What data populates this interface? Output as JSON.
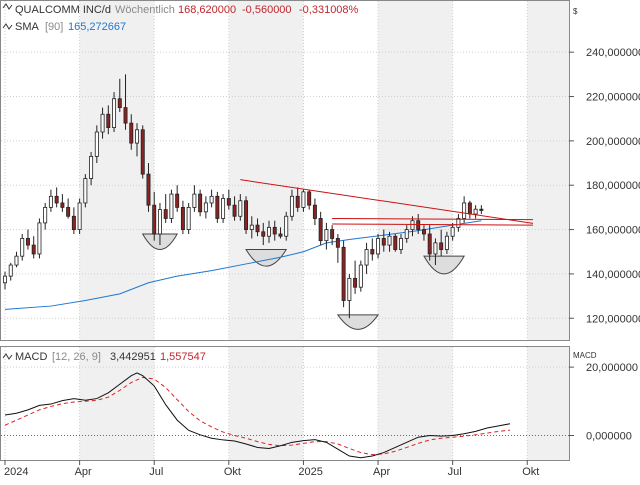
{
  "header": {
    "symbol": "QUALCOMM INC/d",
    "interval": "Wöchentlich",
    "last": "168,620000",
    "change": "-0,560000",
    "change_pct": "-0,331008%",
    "currency": "$"
  },
  "sma_legend": {
    "label": "SMA",
    "param": "[90]",
    "value": "165,272667"
  },
  "macd_legend": {
    "label": "MACD",
    "params": "[12, 26, 9]",
    "macd_value": "3,442951",
    "signal_value": "1,557547"
  },
  "macd_axis_label": "MACD",
  "colors": {
    "up_candle": "#ffffff",
    "down_candle": "#8b2323",
    "candle_outline": "#222222",
    "sma": "#1f77d0",
    "trendline": "#cc1111",
    "macd_line": "#111111",
    "signal_line": "#dd2222",
    "zero_line": "#3b6fd0",
    "band_shade": "#f0f0f0",
    "grid": "#cfcfcf",
    "pattern_fill": "#dddddd"
  },
  "chart_data": [
    {
      "type": "candlestick",
      "title": "QUALCOMM INC/d",
      "x_labels": [
        "2024",
        "Apr",
        "Jul",
        "Okt",
        "2025",
        "Apr",
        "Jul",
        "Okt"
      ],
      "y_ticks": [
        "120,000000",
        "140,000000",
        "160,000000",
        "180,000000",
        "200,000000",
        "220,000000",
        "240,000000"
      ],
      "y_tick_values": [
        120,
        140,
        160,
        180,
        200,
        220,
        240
      ],
      "ylim": [
        112,
        250
      ],
      "x_range": [
        0,
        92
      ],
      "label_positions": [
        0,
        13,
        26,
        39,
        52,
        65,
        78,
        91
      ],
      "candles": [
        {
          "o": 136,
          "h": 141,
          "l": 133,
          "c": 139
        },
        {
          "o": 139,
          "h": 145,
          "l": 137,
          "c": 144
        },
        {
          "o": 144,
          "h": 150,
          "l": 143,
          "c": 148
        },
        {
          "o": 148,
          "h": 158,
          "l": 146,
          "c": 156
        },
        {
          "o": 156,
          "h": 160,
          "l": 151,
          "c": 153
        },
        {
          "o": 153,
          "h": 157,
          "l": 147,
          "c": 149
        },
        {
          "o": 149,
          "h": 165,
          "l": 147,
          "c": 163
        },
        {
          "o": 163,
          "h": 172,
          "l": 160,
          "c": 170
        },
        {
          "o": 170,
          "h": 178,
          "l": 168,
          "c": 175
        },
        {
          "o": 175,
          "h": 179,
          "l": 170,
          "c": 172
        },
        {
          "o": 172,
          "h": 176,
          "l": 168,
          "c": 170
        },
        {
          "o": 170,
          "h": 174,
          "l": 165,
          "c": 166
        },
        {
          "o": 166,
          "h": 170,
          "l": 158,
          "c": 160
        },
        {
          "o": 160,
          "h": 174,
          "l": 158,
          "c": 172
        },
        {
          "o": 172,
          "h": 185,
          "l": 170,
          "c": 183
        },
        {
          "o": 183,
          "h": 195,
          "l": 180,
          "c": 193
        },
        {
          "o": 193,
          "h": 207,
          "l": 190,
          "c": 204
        },
        {
          "o": 204,
          "h": 215,
          "l": 201,
          "c": 212
        },
        {
          "o": 212,
          "h": 216,
          "l": 203,
          "c": 206
        },
        {
          "o": 206,
          "h": 222,
          "l": 204,
          "c": 219
        },
        {
          "o": 219,
          "h": 228,
          "l": 213,
          "c": 215
        },
        {
          "o": 215,
          "h": 230,
          "l": 205,
          "c": 208
        },
        {
          "o": 208,
          "h": 212,
          "l": 196,
          "c": 199
        },
        {
          "o": 199,
          "h": 208,
          "l": 193,
          "c": 205
        },
        {
          "o": 205,
          "h": 207,
          "l": 183,
          "c": 185
        },
        {
          "o": 185,
          "h": 190,
          "l": 168,
          "c": 171
        },
        {
          "o": 171,
          "h": 177,
          "l": 155,
          "c": 158
        },
        {
          "o": 158,
          "h": 172,
          "l": 153,
          "c": 169
        },
        {
          "o": 169,
          "h": 176,
          "l": 163,
          "c": 165
        },
        {
          "o": 165,
          "h": 178,
          "l": 163,
          "c": 176
        },
        {
          "o": 176,
          "h": 180,
          "l": 168,
          "c": 170
        },
        {
          "o": 170,
          "h": 173,
          "l": 158,
          "c": 160
        },
        {
          "o": 160,
          "h": 172,
          "l": 158,
          "c": 170
        },
        {
          "o": 170,
          "h": 180,
          "l": 168,
          "c": 176
        },
        {
          "o": 176,
          "h": 178,
          "l": 166,
          "c": 168
        },
        {
          "o": 168,
          "h": 175,
          "l": 165,
          "c": 172
        },
        {
          "o": 172,
          "h": 178,
          "l": 170,
          "c": 175
        },
        {
          "o": 175,
          "h": 177,
          "l": 163,
          "c": 165
        },
        {
          "o": 165,
          "h": 176,
          "l": 163,
          "c": 174
        },
        {
          "o": 174,
          "h": 178,
          "l": 169,
          "c": 171
        },
        {
          "o": 171,
          "h": 175,
          "l": 164,
          "c": 166
        },
        {
          "o": 166,
          "h": 176,
          "l": 164,
          "c": 173
        },
        {
          "o": 173,
          "h": 175,
          "l": 158,
          "c": 160
        },
        {
          "o": 160,
          "h": 166,
          "l": 156,
          "c": 162
        },
        {
          "o": 162,
          "h": 165,
          "l": 157,
          "c": 159
        },
        {
          "o": 159,
          "h": 163,
          "l": 153,
          "c": 157
        },
        {
          "o": 157,
          "h": 164,
          "l": 154,
          "c": 161
        },
        {
          "o": 161,
          "h": 164,
          "l": 155,
          "c": 158
        },
        {
          "o": 158,
          "h": 161,
          "l": 156,
          "c": 157
        },
        {
          "o": 157,
          "h": 168,
          "l": 155,
          "c": 166
        },
        {
          "o": 166,
          "h": 178,
          "l": 164,
          "c": 175
        },
        {
          "o": 175,
          "h": 179,
          "l": 168,
          "c": 170
        },
        {
          "o": 170,
          "h": 178,
          "l": 168,
          "c": 177
        },
        {
          "o": 177,
          "h": 178,
          "l": 169,
          "c": 171
        },
        {
          "o": 171,
          "h": 174,
          "l": 162,
          "c": 165
        },
        {
          "o": 165,
          "h": 168,
          "l": 153,
          "c": 155
        },
        {
          "o": 155,
          "h": 163,
          "l": 151,
          "c": 160
        },
        {
          "o": 160,
          "h": 162,
          "l": 153,
          "c": 156
        },
        {
          "o": 156,
          "h": 158,
          "l": 145,
          "c": 152
        },
        {
          "o": 152,
          "h": 155,
          "l": 125,
          "c": 128
        },
        {
          "o": 128,
          "h": 140,
          "l": 120,
          "c": 138
        },
        {
          "o": 138,
          "h": 146,
          "l": 131,
          "c": 134
        },
        {
          "o": 134,
          "h": 146,
          "l": 132,
          "c": 144
        },
        {
          "o": 144,
          "h": 154,
          "l": 140,
          "c": 151
        },
        {
          "o": 151,
          "h": 156,
          "l": 146,
          "c": 149
        },
        {
          "o": 149,
          "h": 158,
          "l": 147,
          "c": 156
        },
        {
          "o": 156,
          "h": 160,
          "l": 150,
          "c": 153
        },
        {
          "o": 153,
          "h": 159,
          "l": 150,
          "c": 157
        },
        {
          "o": 157,
          "h": 158,
          "l": 150,
          "c": 151
        },
        {
          "o": 151,
          "h": 158,
          "l": 149,
          "c": 156
        },
        {
          "o": 156,
          "h": 162,
          "l": 154,
          "c": 160
        },
        {
          "o": 160,
          "h": 166,
          "l": 157,
          "c": 164
        },
        {
          "o": 164,
          "h": 167,
          "l": 158,
          "c": 160
        },
        {
          "o": 160,
          "h": 162,
          "l": 155,
          "c": 158
        },
        {
          "o": 158,
          "h": 162,
          "l": 146,
          "c": 149
        },
        {
          "o": 149,
          "h": 156,
          "l": 144,
          "c": 154
        },
        {
          "o": 154,
          "h": 160,
          "l": 148,
          "c": 151
        },
        {
          "o": 151,
          "h": 159,
          "l": 149,
          "c": 157
        },
        {
          "o": 157,
          "h": 163,
          "l": 155,
          "c": 161
        },
        {
          "o": 161,
          "h": 167,
          "l": 159,
          "c": 165
        },
        {
          "o": 165,
          "h": 175,
          "l": 163,
          "c": 172
        },
        {
          "o": 172,
          "h": 173,
          "l": 165,
          "c": 167
        },
        {
          "o": 167,
          "h": 171,
          "l": 165,
          "c": 169.18
        },
        {
          "o": 169.18,
          "h": 171,
          "l": 167,
          "c": 168.62
        }
      ],
      "sma": [
        {
          "x": 0,
          "y": 124
        },
        {
          "x": 8,
          "y": 125.5
        },
        {
          "x": 14,
          "y": 128
        },
        {
          "x": 20,
          "y": 131
        },
        {
          "x": 25,
          "y": 136
        },
        {
          "x": 30,
          "y": 139
        },
        {
          "x": 36,
          "y": 141.5
        },
        {
          "x": 42,
          "y": 144.5
        },
        {
          "x": 48,
          "y": 147.5
        },
        {
          "x": 52,
          "y": 150
        },
        {
          "x": 56,
          "y": 154
        },
        {
          "x": 60,
          "y": 155.5
        },
        {
          "x": 66,
          "y": 157.5
        },
        {
          "x": 72,
          "y": 159.5
        },
        {
          "x": 78,
          "y": 162
        },
        {
          "x": 83,
          "y": 164
        }
      ],
      "trendlines": [
        {
          "x1": 41,
          "y1": 182.5,
          "x2": 92,
          "y2": 162.8
        },
        {
          "x1": 57,
          "y1": 165,
          "x2": 92,
          "y2": 164.5
        },
        {
          "x1": 57,
          "y1": 162.5,
          "x2": 92,
          "y2": 162
        }
      ],
      "patterns": [
        {
          "x1": 24,
          "x2": 30,
          "y_top": 158,
          "y_bot": 151
        },
        {
          "x1": 42,
          "x2": 49,
          "y_top": 151,
          "y_bot": 143.5
        },
        {
          "x1": 58,
          "x2": 65,
          "y_top": 121.5,
          "y_bot": 115
        },
        {
          "x1": 73,
          "x2": 80,
          "y_top": 148,
          "y_bot": 140
        }
      ]
    },
    {
      "type": "line",
      "title": "MACD",
      "y_ticks": [
        "0,000000",
        "20,000000"
      ],
      "y_tick_values": [
        0,
        20
      ],
      "ylim": [
        -6,
        21.5
      ],
      "x_range": [
        0,
        92
      ],
      "series": [
        {
          "name": "MACD",
          "values": [
            {
              "x": 0,
              "y": 6
            },
            {
              "x": 2,
              "y": 6.5
            },
            {
              "x": 4,
              "y": 7.5
            },
            {
              "x": 6,
              "y": 8.8
            },
            {
              "x": 8,
              "y": 9.2
            },
            {
              "x": 10,
              "y": 10.2
            },
            {
              "x": 12,
              "y": 10.8
            },
            {
              "x": 14,
              "y": 10.3
            },
            {
              "x": 16,
              "y": 10.8
            },
            {
              "x": 18,
              "y": 12.5
            },
            {
              "x": 20,
              "y": 15
            },
            {
              "x": 22,
              "y": 17.5
            },
            {
              "x": 23,
              "y": 18.3
            },
            {
              "x": 24,
              "y": 17.5
            },
            {
              "x": 26,
              "y": 14.5
            },
            {
              "x": 28,
              "y": 9
            },
            {
              "x": 30,
              "y": 4.5
            },
            {
              "x": 32,
              "y": 1.5
            },
            {
              "x": 34,
              "y": 0.2
            },
            {
              "x": 36,
              "y": -0.8
            },
            {
              "x": 38,
              "y": -1.3
            },
            {
              "x": 40,
              "y": -1.6
            },
            {
              "x": 42,
              "y": -2.5
            },
            {
              "x": 44,
              "y": -3.5
            },
            {
              "x": 46,
              "y": -3.8
            },
            {
              "x": 48,
              "y": -3
            },
            {
              "x": 50,
              "y": -2
            },
            {
              "x": 52,
              "y": -1.5
            },
            {
              "x": 54,
              "y": -1.2
            },
            {
              "x": 56,
              "y": -2
            },
            {
              "x": 58,
              "y": -4
            },
            {
              "x": 60,
              "y": -6
            },
            {
              "x": 62,
              "y": -6.5
            },
            {
              "x": 64,
              "y": -6
            },
            {
              "x": 66,
              "y": -5
            },
            {
              "x": 68,
              "y": -3.5
            },
            {
              "x": 70,
              "y": -2
            },
            {
              "x": 72,
              "y": -0.5
            },
            {
              "x": 74,
              "y": 0
            },
            {
              "x": 76,
              "y": -0.2
            },
            {
              "x": 78,
              "y": 0
            },
            {
              "x": 80,
              "y": 0.5
            },
            {
              "x": 82,
              "y": 1.2
            },
            {
              "x": 84,
              "y": 2.2
            },
            {
              "x": 86,
              "y": 2.8
            },
            {
              "x": 88,
              "y": 3.44
            }
          ]
        },
        {
          "name": "Signal",
          "values": [
            {
              "x": 0,
              "y": 3
            },
            {
              "x": 2,
              "y": 4.5
            },
            {
              "x": 4,
              "y": 6
            },
            {
              "x": 6,
              "y": 7.5
            },
            {
              "x": 8,
              "y": 8.5
            },
            {
              "x": 10,
              "y": 9.3
            },
            {
              "x": 12,
              "y": 9.8
            },
            {
              "x": 14,
              "y": 10
            },
            {
              "x": 16,
              "y": 10.3
            },
            {
              "x": 18,
              "y": 11.2
            },
            {
              "x": 20,
              "y": 13.2
            },
            {
              "x": 22,
              "y": 15.5
            },
            {
              "x": 24,
              "y": 17
            },
            {
              "x": 26,
              "y": 16.5
            },
            {
              "x": 28,
              "y": 14
            },
            {
              "x": 30,
              "y": 10.5
            },
            {
              "x": 32,
              "y": 7
            },
            {
              "x": 34,
              "y": 4.3
            },
            {
              "x": 36,
              "y": 2.5
            },
            {
              "x": 38,
              "y": 1
            },
            {
              "x": 40,
              "y": 0
            },
            {
              "x": 42,
              "y": -0.8
            },
            {
              "x": 44,
              "y": -1.8
            },
            {
              "x": 46,
              "y": -2.6
            },
            {
              "x": 48,
              "y": -3
            },
            {
              "x": 50,
              "y": -2.8
            },
            {
              "x": 52,
              "y": -2.3
            },
            {
              "x": 54,
              "y": -1.8
            },
            {
              "x": 56,
              "y": -1.8
            },
            {
              "x": 58,
              "y": -2.5
            },
            {
              "x": 60,
              "y": -3.8
            },
            {
              "x": 62,
              "y": -5
            },
            {
              "x": 64,
              "y": -5.6
            },
            {
              "x": 66,
              "y": -5.4
            },
            {
              "x": 68,
              "y": -4.6
            },
            {
              "x": 70,
              "y": -3.5
            },
            {
              "x": 72,
              "y": -2.3
            },
            {
              "x": 74,
              "y": -1.3
            },
            {
              "x": 76,
              "y": -0.8
            },
            {
              "x": 78,
              "y": -0.5
            },
            {
              "x": 80,
              "y": -0.2
            },
            {
              "x": 82,
              "y": 0.2
            },
            {
              "x": 84,
              "y": 0.7
            },
            {
              "x": 86,
              "y": 1.2
            },
            {
              "x": 88,
              "y": 1.56
            }
          ]
        }
      ]
    }
  ]
}
